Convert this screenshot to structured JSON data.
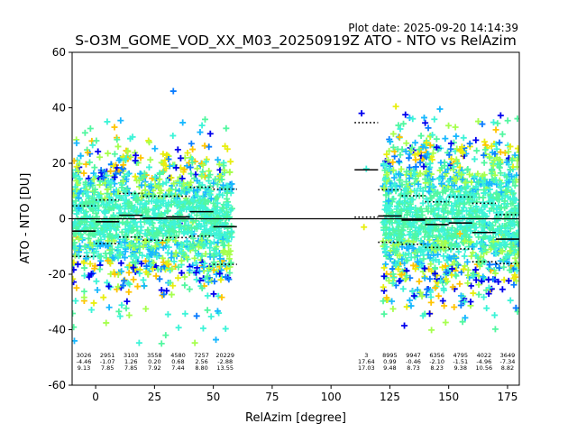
{
  "plot_date": "Plot date: 2025-09-20 14:14:39",
  "chart_data": {
    "type": "scatter",
    "title": "S-O3M_GOME_VOD_XX_M03_20250919Z ATO - NTO vs RelAzim",
    "xlabel": "RelAzim [degree]",
    "ylabel": "ATO - NTO [DU]",
    "xlim": [
      -10,
      180
    ],
    "ylim": [
      -60,
      60
    ],
    "xticks": [
      0,
      25,
      50,
      75,
      100,
      125,
      150,
      175
    ],
    "yticks": [
      -60,
      -40,
      -20,
      0,
      20,
      40,
      60
    ],
    "grid": false,
    "marker": "+",
    "zero_line": 0,
    "bin_width": 10,
    "colors": {
      "cmap": [
        "#0000ee",
        "#0a7cff",
        "#18b8ff",
        "#3ef4d8",
        "#52f7a0",
        "#a6ff4e",
        "#e8ee10",
        "#ffc400"
      ],
      "mean_line": "#000000",
      "std_line": "#000000"
    },
    "bins": [
      {
        "center": -5,
        "count": "3026",
        "mean_label": "-4.46",
        "std_label": "9.13",
        "mean": -4.46,
        "std": 9.13
      },
      {
        "center": 5,
        "count": "2951",
        "mean_label": "-1.07",
        "std_label": "7.85",
        "mean": -1.07,
        "std": 7.85
      },
      {
        "center": 15,
        "count": "3103",
        "mean_label": "1.26",
        "std_label": "7.85",
        "mean": 1.26,
        "std": 7.85
      },
      {
        "center": 25,
        "count": "3558",
        "mean_label": "0.20",
        "std_label": "7.92",
        "mean": 0.2,
        "std": 7.92
      },
      {
        "center": 35,
        "count": "4580",
        "mean_label": "0.68",
        "std_label": "7.44",
        "mean": 0.68,
        "std": 7.44
      },
      {
        "center": 45,
        "count": "7257",
        "mean_label": "2.56",
        "std_label": "8.80",
        "mean": 2.56,
        "std": 8.8
      },
      {
        "center": 55,
        "count": "20229",
        "mean_label": "-2.88",
        "std_label": "13.55",
        "mean": -2.88,
        "std": 13.55
      },
      {
        "center": 115,
        "count": "3",
        "mean_label": "17.64",
        "std_label": "17.03",
        "mean": 17.64,
        "std": 17.03
      },
      {
        "center": 125,
        "count": "8995",
        "mean_label": "0.99",
        "std_label": "9.48",
        "mean": 0.99,
        "std": 9.48
      },
      {
        "center": 135,
        "count": "9947",
        "mean_label": "-0.46",
        "std_label": "8.73",
        "mean": -0.46,
        "std": 8.73
      },
      {
        "center": 145,
        "count": "6356",
        "mean_label": "-2.10",
        "std_label": "8.23",
        "mean": -2.1,
        "std": 8.23
      },
      {
        "center": 155,
        "count": "4795",
        "mean_label": "-1.51",
        "std_label": "9.38",
        "mean": -1.51,
        "std": 9.38
      },
      {
        "center": 165,
        "count": "4022",
        "mean_label": "-4.96",
        "std_label": "10.56",
        "mean": -4.96,
        "std": 10.56
      },
      {
        "center": 175,
        "count": "3649",
        "mean_label": "-7.34",
        "std_label": "8.82",
        "mean": -7.34,
        "std": 8.82
      }
    ],
    "scatter_regions": [
      {
        "x": [
          -10,
          58
        ],
        "y_core": [
          -22,
          22
        ],
        "y_tail": [
          -45,
          36
        ]
      },
      {
        "x": [
          122,
          180
        ],
        "y_core": [
          -25,
          27
        ],
        "y_tail": [
          -40,
          37
        ]
      }
    ],
    "outliers": [
      {
        "x": 113,
        "y": 38
      },
      {
        "x": 115,
        "y": 18
      },
      {
        "x": 114,
        "y": -3
      },
      {
        "x": 33,
        "y": 46
      },
      {
        "x": 28,
        "y": -45
      },
      {
        "x": 8,
        "y": 33
      }
    ]
  }
}
